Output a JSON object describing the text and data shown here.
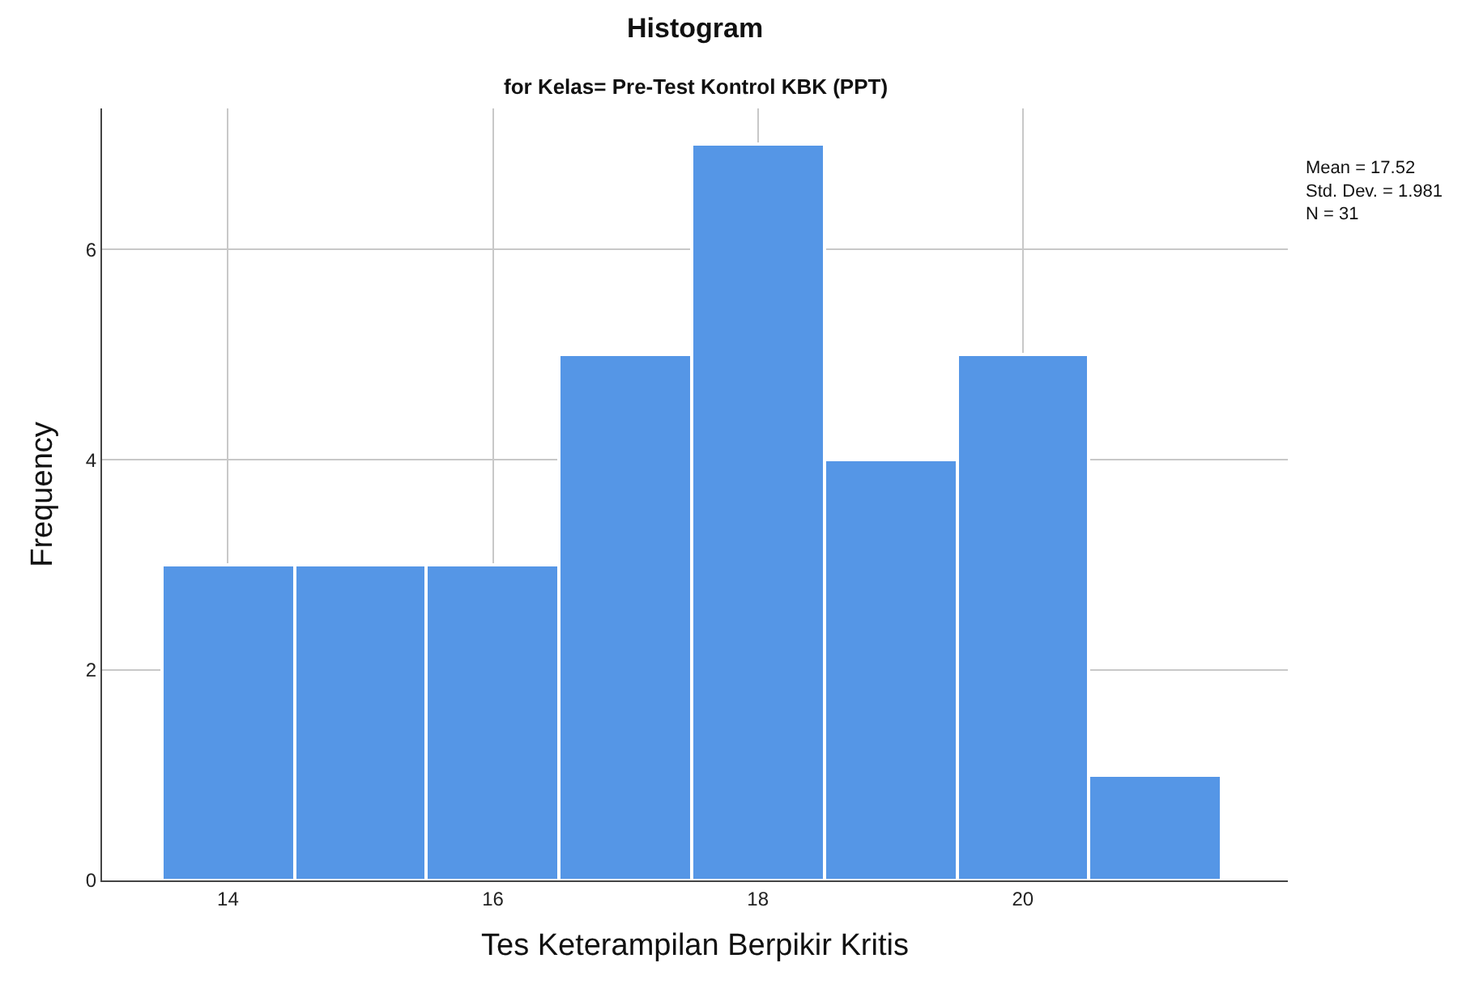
{
  "chart_data": {
    "type": "histogram",
    "title": "Histogram",
    "subtitle": "for Kelas= Pre-Test Kontrol KBK (PPT)",
    "xlabel": "Tes Keterampilan Berpikir Kritis",
    "ylabel": "Frequency",
    "bins": [
      13.5,
      14.5,
      15.5,
      16.5,
      17.5,
      18.5,
      19.5,
      20.5,
      21.5
    ],
    "values": [
      3,
      3,
      3,
      5,
      7,
      4,
      5,
      1
    ],
    "color": "#5596e6",
    "xlim": [
      13.05,
      22
    ],
    "xticks": [
      14,
      16,
      18,
      20
    ],
    "ylim": [
      0,
      7.34
    ],
    "yticks": [
      0,
      2,
      4,
      6
    ],
    "grid": true,
    "annotations": [
      "Mean = 17.52\nStd. Dev. = 1.981\nN = 31"
    ]
  }
}
